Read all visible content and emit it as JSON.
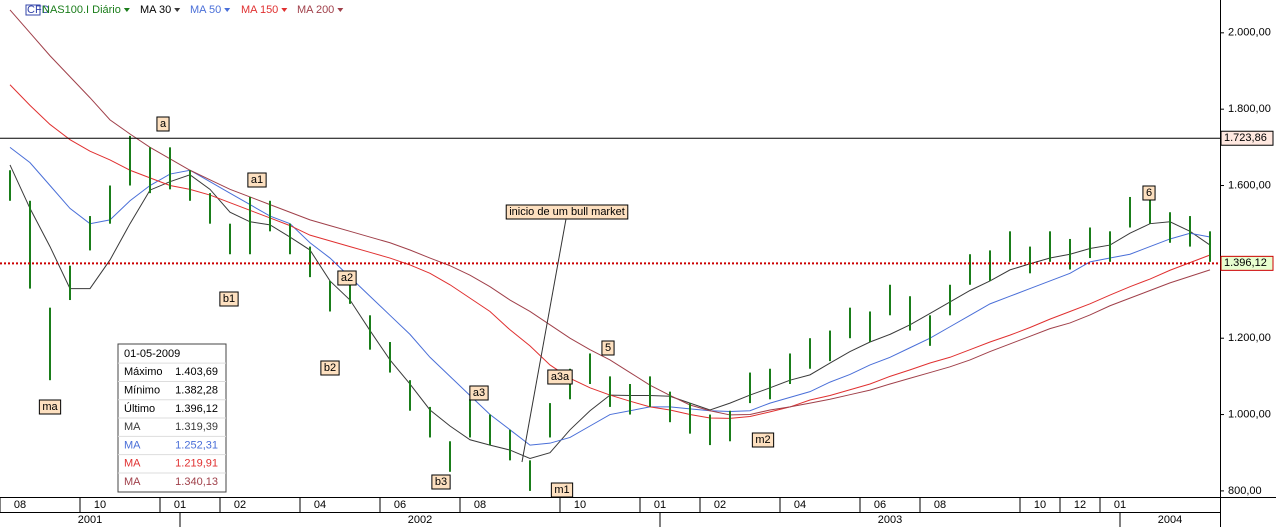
{
  "chart_data": {
    "type": "hlbar",
    "header_icon": "CFD",
    "series": [
      {
        "name": "NAS100.I Diário",
        "color": "#1a7d1a",
        "high": [
          1640,
          1560,
          1280,
          1390,
          1520,
          1600,
          1730,
          1700,
          1700,
          1640,
          1580,
          1500,
          1570,
          1560,
          1500,
          1440,
          1350,
          1370,
          1260,
          1190,
          1090,
          1020,
          930,
          1040,
          1000,
          960,
          880,
          1030,
          1120,
          1160,
          1100,
          1080,
          1100,
          1060,
          1030,
          1000,
          1010,
          1110,
          1120,
          1160,
          1200,
          1220,
          1280,
          1270,
          1340,
          1310,
          1260,
          1340,
          1420,
          1430,
          1480,
          1440,
          1480,
          1460,
          1490,
          1480,
          1570,
          1570,
          1530,
          1520,
          1480
        ],
        "low": [
          1560,
          1330,
          1090,
          1300,
          1430,
          1500,
          1600,
          1580,
          1590,
          1560,
          1500,
          1420,
          1420,
          1480,
          1420,
          1360,
          1270,
          1290,
          1170,
          1110,
          1010,
          940,
          850,
          940,
          920,
          880,
          800,
          940,
          1040,
          1080,
          1020,
          1000,
          1020,
          980,
          950,
          920,
          930,
          1030,
          1040,
          1080,
          1120,
          1140,
          1200,
          1190,
          1260,
          1220,
          1180,
          1260,
          1340,
          1350,
          1400,
          1370,
          1400,
          1380,
          1410,
          1400,
          1490,
          1500,
          1450,
          1440,
          1400
        ]
      },
      {
        "name": "MA 30",
        "color": "#3a3a3a",
        "values": [
          1654,
          1540,
          1440,
          1330,
          1330,
          1405,
          1500,
          1588,
          1610,
          1628,
          1590,
          1530,
          1505,
          1497,
          1465,
          1431,
          1350,
          1300,
          1220,
          1143,
          1080,
          1012,
          970,
          934,
          920,
          907,
          885,
          900,
          960,
          1010,
          1051,
          1050,
          1050,
          1048,
          1030,
          1012,
          1030,
          1051,
          1070,
          1090,
          1104,
          1135,
          1165,
          1190,
          1210,
          1235,
          1265,
          1295,
          1325,
          1350,
          1379,
          1395,
          1410,
          1420,
          1435,
          1444,
          1475,
          1500,
          1505,
          1480,
          1444
        ]
      },
      {
        "name": "MA 50",
        "color": "#4a6fd8",
        "values": [
          1700,
          1660,
          1600,
          1540,
          1500,
          1510,
          1560,
          1600,
          1630,
          1640,
          1610,
          1580,
          1550,
          1520,
          1500,
          1450,
          1410,
          1360,
          1310,
          1260,
          1210,
          1150,
          1100,
          1050,
          1000,
          960,
          920,
          925,
          940,
          970,
          1000,
          1010,
          1020,
          1020,
          1015,
          1010,
          1008,
          1010,
          1030,
          1045,
          1060,
          1085,
          1105,
          1130,
          1150,
          1175,
          1200,
          1230,
          1260,
          1290,
          1310,
          1330,
          1350,
          1370,
          1400,
          1410,
          1420,
          1440,
          1460,
          1475,
          1465
        ]
      },
      {
        "name": "MA 150",
        "color": "#e03030",
        "values": [
          1864,
          1810,
          1760,
          1720,
          1690,
          1667,
          1640,
          1620,
          1600,
          1590,
          1575,
          1555,
          1535,
          1515,
          1495,
          1470,
          1455,
          1440,
          1425,
          1410,
          1392,
          1370,
          1340,
          1305,
          1270,
          1222,
          1180,
          1130,
          1095,
          1070,
          1051,
          1035,
          1020,
          1012,
          1000,
          991,
          990,
          995,
          1007,
          1020,
          1038,
          1050,
          1065,
          1080,
          1100,
          1117,
          1135,
          1150,
          1170,
          1190,
          1208,
          1228,
          1250,
          1270,
          1290,
          1313,
          1335,
          1355,
          1378,
          1398,
          1418
        ]
      },
      {
        "name": "MA 200",
        "color": "#a0404a",
        "values": [
          2060,
          2000,
          1940,
          1885,
          1830,
          1772,
          1735,
          1700,
          1670,
          1640,
          1615,
          1590,
          1570,
          1550,
          1530,
          1510,
          1495,
          1480,
          1465,
          1450,
          1431,
          1410,
          1390,
          1365,
          1335,
          1300,
          1270,
          1235,
          1200,
          1170,
          1143,
          1110,
          1077,
          1050,
          1025,
          1010,
          999,
          1000,
          1012,
          1020,
          1030,
          1040,
          1052,
          1064,
          1080,
          1095,
          1110,
          1125,
          1143,
          1165,
          1185,
          1205,
          1225,
          1240,
          1261,
          1285,
          1305,
          1325,
          1345,
          1362,
          1379
        ]
      }
    ],
    "categories": [
      null,
      "08",
      null,
      null,
      null,
      "10",
      null,
      null,
      null,
      "01",
      null,
      null,
      "02",
      null,
      null,
      null,
      "04",
      null,
      null,
      null,
      "06",
      null,
      null,
      null,
      "08",
      null,
      null,
      null,
      null,
      "10",
      null,
      null,
      null,
      "01",
      null,
      null,
      "02",
      null,
      null,
      null,
      "04",
      null,
      null,
      null,
      "06",
      null,
      null,
      "08",
      null,
      null,
      null,
      null,
      "10",
      null,
      "12",
      null,
      "01",
      null,
      null,
      null,
      null
    ],
    "years": [
      "2001",
      "2002",
      "2003",
      "2004"
    ],
    "ylim": [
      784,
      2086
    ],
    "yticks": [
      {
        "value": 800,
        "label": "800,00"
      },
      {
        "value": 1000,
        "label": "1.000,00"
      },
      {
        "value": 1200,
        "label": "1.200,00"
      },
      {
        "value": 1400,
        "label": "1.400,00"
      },
      {
        "value": 1600,
        "label": "1.600,00"
      },
      {
        "value": 1800,
        "label": "1.800,00"
      },
      {
        "value": 2000,
        "label": "2.000,00"
      }
    ],
    "hlines": [
      {
        "value": 1723.86,
        "label": "1.723,86",
        "color": "#000000",
        "style": "solid"
      },
      {
        "value": 1396.12,
        "label": "1.396,12",
        "color": "#cc0000",
        "style": "dotted"
      }
    ],
    "annotations": [
      {
        "text": "a"
      },
      {
        "text": "a1"
      },
      {
        "text": "b1"
      },
      {
        "text": "a2"
      },
      {
        "text": "b2"
      },
      {
        "text": "a3"
      },
      {
        "text": "b3"
      },
      {
        "text": "a3a"
      },
      {
        "text": "5"
      },
      {
        "text": "m1"
      },
      {
        "text": "m2"
      },
      {
        "text": "ma"
      },
      {
        "text": "6"
      },
      {
        "text": "inicio de um bull market"
      }
    ],
    "info": {
      "date": "01-05-2009",
      "rows": [
        {
          "name": "Máximo",
          "value": "1.403,69",
          "color": "#000000"
        },
        {
          "name": "Mínimo",
          "value": "1.382,28",
          "color": "#000000"
        },
        {
          "name": "Último",
          "value": "1.396,12",
          "color": "#000000"
        },
        {
          "name": "MA",
          "value": "1.319,39",
          "color": "#3a3a3a"
        },
        {
          "name": "MA",
          "value": "1.252,31",
          "color": "#4a6fd8"
        },
        {
          "name": "MA",
          "value": "1.219,91",
          "color": "#e03030"
        },
        {
          "name": "MA",
          "value": "1.340,13",
          "color": "#a0404a"
        }
      ]
    }
  }
}
